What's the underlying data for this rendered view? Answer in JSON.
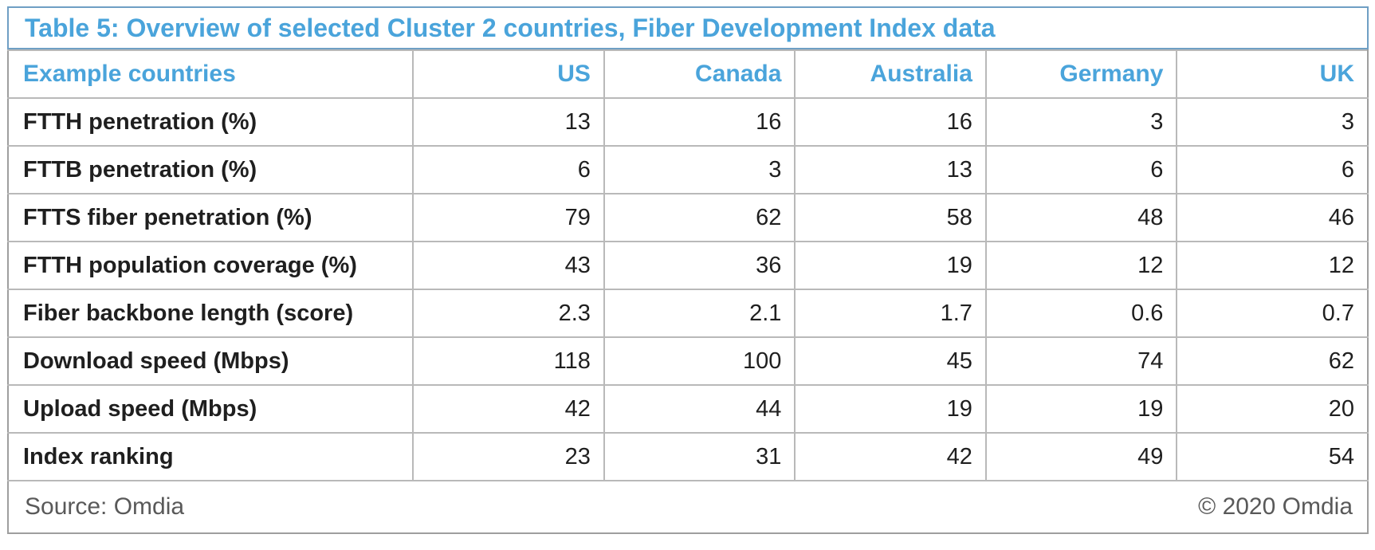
{
  "colors": {
    "accent_blue": "#4aa4db",
    "title_border_blue": "#6f9fc4",
    "grid_gray": "#b9b9b9",
    "outer_border_gray": "#9e9e9e",
    "body_text": "#1f1f1f",
    "footer_text": "#595959"
  },
  "table": {
    "title": "Table 5: Overview of selected Cluster 2 countries, Fiber Development Index data",
    "header": {
      "label": "Example countries",
      "countries": [
        "US",
        "Canada",
        "Australia",
        "Germany",
        "UK"
      ]
    },
    "rows": [
      {
        "label": "FTTH penetration (%)",
        "values": [
          "13",
          "16",
          "16",
          "3",
          "3"
        ]
      },
      {
        "label": "FTTB penetration (%)",
        "values": [
          "6",
          "3",
          "13",
          "6",
          "6"
        ]
      },
      {
        "label": "FTTS fiber penetration (%)",
        "values": [
          "79",
          "62",
          "58",
          "48",
          "46"
        ]
      },
      {
        "label": "FTTH population coverage (%)",
        "values": [
          "43",
          "36",
          "19",
          "12",
          "12"
        ]
      },
      {
        "label": "Fiber backbone length (score)",
        "values": [
          "2.3",
          "2.1",
          "1.7",
          "0.6",
          "0.7"
        ]
      },
      {
        "label": "Download speed (Mbps)",
        "values": [
          "118",
          "100",
          "45",
          "74",
          "62"
        ]
      },
      {
        "label": "Upload speed (Mbps)",
        "values": [
          "42",
          "44",
          "19",
          "19",
          "20"
        ]
      },
      {
        "label": "Index ranking",
        "values": [
          "23",
          "31",
          "42",
          "49",
          "54"
        ]
      }
    ],
    "footer": {
      "source": "Source: Omdia",
      "copyright": "© 2020 Omdia"
    }
  },
  "chart_data": {
    "type": "table",
    "title": "Table 5: Overview of selected Cluster 2 countries, Fiber Development Index data",
    "columns": [
      "Example countries",
      "US",
      "Canada",
      "Australia",
      "Germany",
      "UK"
    ],
    "rows": [
      [
        "FTTH penetration (%)",
        13,
        16,
        16,
        3,
        3
      ],
      [
        "FTTB penetration (%)",
        6,
        3,
        13,
        6,
        6
      ],
      [
        "FTTS fiber penetration (%)",
        79,
        62,
        58,
        48,
        46
      ],
      [
        "FTTH population coverage (%)",
        43,
        36,
        19,
        12,
        12
      ],
      [
        "Fiber backbone length (score)",
        2.3,
        2.1,
        1.7,
        0.6,
        0.7
      ],
      [
        "Download speed (Mbps)",
        118,
        100,
        45,
        74,
        62
      ],
      [
        "Upload speed (Mbps)",
        42,
        44,
        19,
        19,
        20
      ],
      [
        "Index ranking",
        23,
        31,
        42,
        49,
        54
      ]
    ],
    "source": "Source: Omdia",
    "copyright": "© 2020 Omdia"
  }
}
